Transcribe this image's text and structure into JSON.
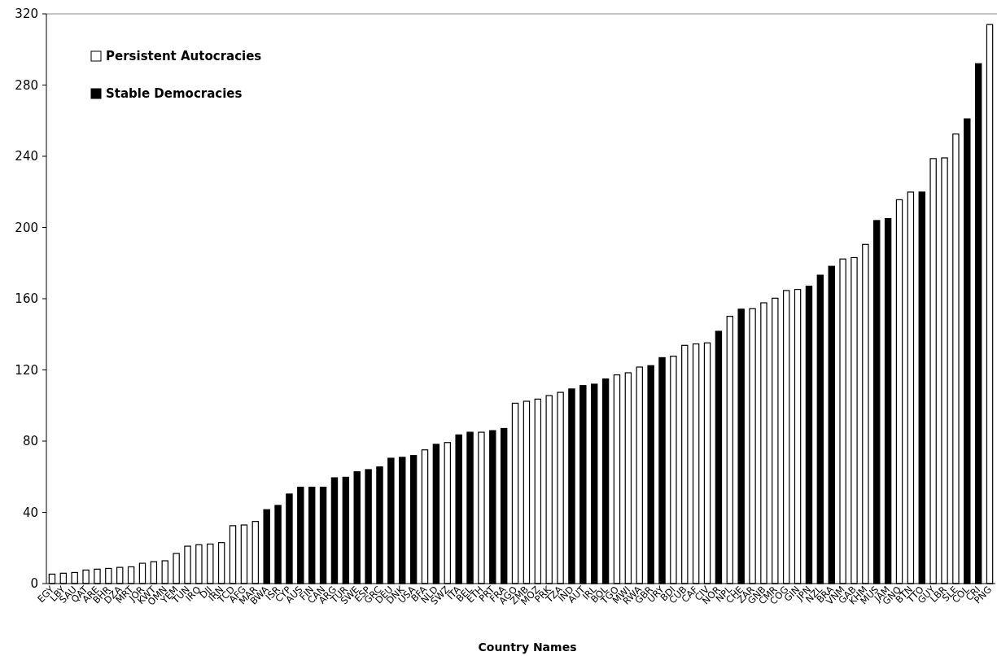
{
  "chart_data": {
    "type": "bar",
    "xlabel": "Country Names",
    "legend": "top left",
    "categories": [
      "EGY",
      "LBY",
      "SAU",
      "QAT",
      "ARE",
      "BHR",
      "DZA",
      "MRT",
      "JOR",
      "KWT",
      "OMN",
      "YEM",
      "TUN",
      "IRQ",
      "DJI",
      "IRN",
      "TCD",
      "AFG",
      "MAR",
      "BWA",
      "ISR",
      "CYP",
      "AUS",
      "FIN",
      "CAN",
      "ARG",
      "TUR",
      "SWE",
      "ESP",
      "GRC",
      "DEU",
      "DNK",
      "USA",
      "BFA",
      "NLD",
      "SWZ",
      "ITA",
      "BEL",
      "ETH",
      "PRT",
      "FRA",
      "AGO",
      "ZMB",
      "MOZ",
      "PRK",
      "TZA",
      "IND",
      "AUT",
      "IRL",
      "BOL",
      "TGO",
      "MWI",
      "RWA",
      "GBR",
      "URY",
      "BDI",
      "CUB",
      "CAF",
      "CIV",
      "NOR",
      "NPL",
      "CHE",
      "ZAR",
      "GNB",
      "CMR",
      "COG",
      "GIN",
      "JPN",
      "NZL",
      "BRA",
      "VNM",
      "GAB",
      "KHM",
      "MUS",
      "JAM",
      "GNQ",
      "BTN",
      "TTO",
      "GUY",
      "LBR",
      "SLE",
      "COL",
      "CRI",
      "PNG"
    ],
    "series": [
      {
        "name": "Persistent Autocracies",
        "color": "#ffffff",
        "values": [
          5.3,
          5.8,
          6.2,
          7.6,
          8.1,
          8.5,
          9.1,
          9.4,
          11.4,
          12.3,
          12.8,
          16.9,
          21.0,
          21.8,
          22.2,
          23.0,
          32.5,
          32.9,
          34.9,
          null,
          null,
          null,
          null,
          null,
          null,
          null,
          null,
          null,
          null,
          null,
          null,
          null,
          null,
          75.1,
          null,
          79.2,
          null,
          null,
          85.0,
          null,
          null,
          101.3,
          102.4,
          103.6,
          105.6,
          107.4,
          null,
          null,
          null,
          null,
          117.2,
          118.4,
          121.6,
          null,
          null,
          127.7,
          133.8,
          134.6,
          135.2,
          null,
          150.1,
          null,
          154.4,
          157.7,
          160.3,
          164.6,
          165.2,
          null,
          null,
          null,
          182.3,
          183.1,
          190.5,
          null,
          null,
          215.6,
          219.9,
          null,
          238.7,
          239.1,
          252.5,
          null,
          null,
          314
        ]
      },
      {
        "name": "Stable Democracies",
        "color": "#000000",
        "values": [
          null,
          null,
          null,
          null,
          null,
          null,
          null,
          null,
          null,
          null,
          null,
          null,
          null,
          null,
          null,
          null,
          null,
          null,
          null,
          41.5,
          43.9,
          50.3,
          54.1,
          54.1,
          54.1,
          59.4,
          59.7,
          62.8,
          64.0,
          65.5,
          70.4,
          70.9,
          71.9,
          null,
          78.2,
          null,
          83.5,
          85.0,
          null,
          85.9,
          87.1,
          null,
          null,
          null,
          null,
          null,
          109.3,
          111.2,
          112.0,
          114.9,
          null,
          null,
          null,
          122.4,
          126.9,
          null,
          null,
          null,
          null,
          141.7,
          null,
          154.1,
          null,
          null,
          null,
          null,
          null,
          167.0,
          173.2,
          178.2,
          null,
          null,
          null,
          203.9,
          205.0,
          null,
          null,
          219.9,
          null,
          null,
          null,
          261,
          292,
          null
        ]
      }
    ],
    "ylim": [
      0,
      320
    ],
    "yticks": [
      0,
      40,
      80,
      120,
      160,
      200,
      240,
      280,
      320
    ]
  }
}
